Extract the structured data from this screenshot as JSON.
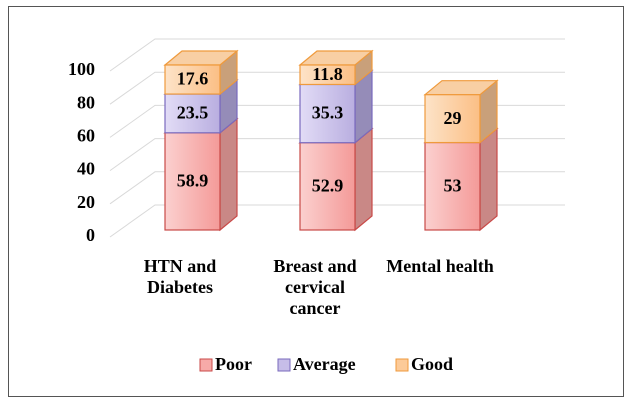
{
  "chart_data": {
    "type": "bar3d_stacked",
    "categories": [
      "HTN and Diabetes",
      "Breast and cervical cancer",
      "Mental health"
    ],
    "series": [
      {
        "name": "Poor",
        "color": "#f7aaa8",
        "values": [
          58.9,
          52.9,
          53
        ]
      },
      {
        "name": "Average",
        "color": "#c6bde8",
        "values": [
          23.5,
          35.3,
          null
        ]
      },
      {
        "name": "Good",
        "color": "#fcca98",
        "values": [
          17.6,
          11.8,
          29
        ]
      }
    ],
    "ylim": [
      0,
      100
    ],
    "yticks": [
      0,
      20,
      40,
      60,
      80,
      100
    ],
    "grid": true,
    "legend": "bottom"
  }
}
